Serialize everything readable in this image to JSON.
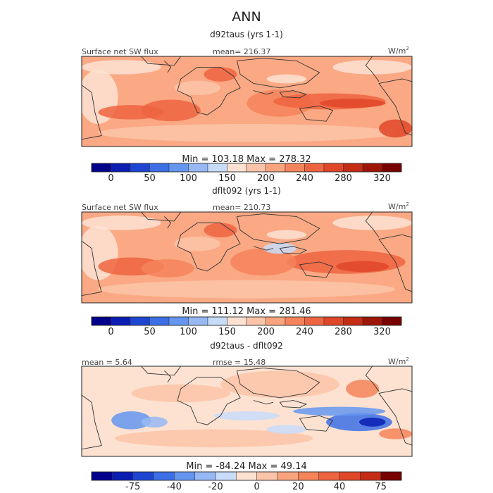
{
  "figure_title": "ANN",
  "units": "W/m",
  "units_sup": "2",
  "chart_data": [
    {
      "type": "heatmap",
      "title": "d92taus (yrs 1-1)",
      "label_left": "Surface net SW flux",
      "label_mid": "mean= 216.37",
      "min_max": "Min = 103.18  Max = 278.32",
      "colorbar_ticks": [
        "0",
        "50",
        "100",
        "150",
        "200",
        "240",
        "280",
        "320"
      ],
      "field_mean": 216.37,
      "field_min": 103.18,
      "field_max": 278.32
    },
    {
      "type": "heatmap",
      "title": "dflt092 (yrs 1-1)",
      "label_left": "Surface net SW flux",
      "label_mid": "mean= 210.73",
      "min_max": "Min = 111.12  Max = 281.46",
      "colorbar_ticks": [
        "0",
        "50",
        "100",
        "150",
        "200",
        "240",
        "280",
        "320"
      ],
      "field_mean": 210.73,
      "field_min": 111.12,
      "field_max": 281.46
    },
    {
      "type": "heatmap",
      "title": "d92taus - dflt092",
      "label_left": "mean =   5.64",
      "label_mid": "rmse =  15.48",
      "min_max": "Min = -84.24  Max =  49.14",
      "colorbar_ticks": [
        "-75",
        "-40",
        "-20",
        "0",
        "20",
        "40",
        "75"
      ],
      "field_mean": 5.64,
      "field_rmse": 15.48,
      "field_min": -84.24,
      "field_max": 49.14
    }
  ],
  "palette": {
    "full": [
      "#00008b",
      "#0a1eb4",
      "#1e46d2",
      "#3c6ee6",
      "#6496f0",
      "#96b9f5",
      "#c8dcfa",
      "#fde2d2",
      "#fbc4a8",
      "#f9a47e",
      "#f5845a",
      "#ef6440",
      "#e04628",
      "#c42c14",
      "#9e1606",
      "#780000"
    ],
    "diff": [
      "#00008b",
      "#0a1eb4",
      "#1e46d2",
      "#3c6ee6",
      "#6496f0",
      "#96b9f5",
      "#c8dcfa",
      "#fde2d2",
      "#fbc4a8",
      "#f9a47e",
      "#f5845a",
      "#ef6440",
      "#e04628",
      "#c42c14",
      "#780000"
    ],
    "ocean_full": "#fbc4a8",
    "ocean_diff": "#fde2d2",
    "coast": "#333333"
  }
}
